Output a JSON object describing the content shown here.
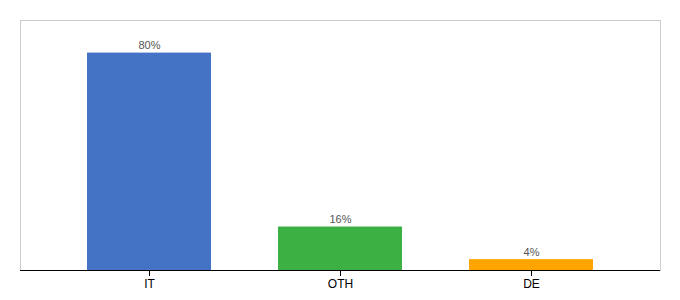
{
  "chart_data": {
    "type": "bar",
    "categories": [
      "IT",
      "OTH",
      "DE"
    ],
    "values": [
      80,
      16,
      4
    ],
    "value_labels": [
      "80%",
      "16%",
      "4%"
    ],
    "colors": [
      "#4472c4",
      "#3cb043",
      "#ffa500"
    ],
    "ylim": [
      0,
      92
    ],
    "data_labels": true,
    "tick_labels": "x"
  }
}
